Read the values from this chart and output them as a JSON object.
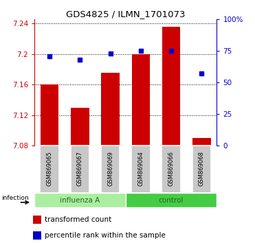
{
  "title": "GDS4825 / ILMN_1701073",
  "samples": [
    "GSM869065",
    "GSM869067",
    "GSM869069",
    "GSM869064",
    "GSM869066",
    "GSM869068"
  ],
  "groups": [
    "influenza A",
    "influenza A",
    "influenza A",
    "control",
    "control",
    "control"
  ],
  "group_labels": [
    "influenza A",
    "control"
  ],
  "bar_values": [
    7.16,
    7.13,
    7.175,
    7.2,
    7.235,
    7.09
  ],
  "scatter_values": [
    71,
    68,
    73,
    75,
    75,
    57
  ],
  "bar_base": 7.08,
  "ylim_left": [
    7.08,
    7.245
  ],
  "ylim_right": [
    0,
    100
  ],
  "yticks_left": [
    7.08,
    7.12,
    7.16,
    7.2,
    7.24
  ],
  "ytick_labels_left": [
    "7.08",
    "7.12",
    "7.16",
    "7.2",
    "7.24"
  ],
  "yticks_right": [
    0,
    25,
    50,
    75,
    100
  ],
  "ytick_labels_right": [
    "0",
    "25",
    "50",
    "75",
    "100%"
  ],
  "bar_color": "#CC0000",
  "scatter_color": "#0000CC",
  "group_color_flu": "#AAEEA0",
  "group_color_ctrl": "#44CC44",
  "group_label_color_flu": "#226622",
  "group_label_color_ctrl": "#226622",
  "left_axis_color": "#CC0000",
  "right_axis_color": "#0000CC",
  "tick_area_color": "#C8C8C8",
  "infection_label": "infection",
  "legend_bar_label": "transformed count",
  "legend_scatter_label": "percentile rank within the sample",
  "bar_width": 0.6
}
